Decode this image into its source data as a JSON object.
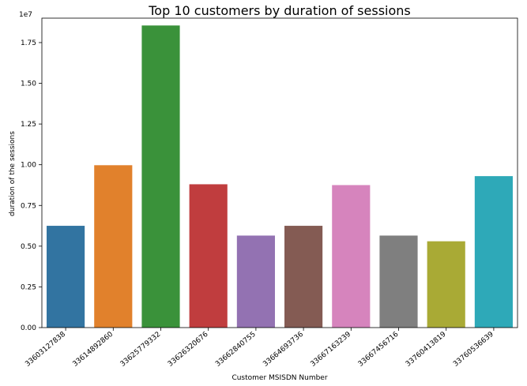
{
  "chart_data": {
    "type": "bar",
    "title": "Top 10 customers by duration of sessions",
    "xlabel": "Customer MSISDN Number",
    "ylabel": "duration of the sessions",
    "y_offset_label": "1e7",
    "categories": [
      "33603127838",
      "33614892860",
      "33625779332",
      "33626320676",
      "33662840755",
      "33664693736",
      "33667163239",
      "33667456716",
      "33760413819",
      "33760536639"
    ],
    "values": [
      6250000,
      9970000,
      18550000,
      8800000,
      5650000,
      6250000,
      8750000,
      5650000,
      5300000,
      9300000
    ],
    "colors": [
      "#3274a1",
      "#e1812c",
      "#3a923a",
      "#c03d3e",
      "#9372b2",
      "#845b53",
      "#d684bd",
      "#7f7f7f",
      "#a9aa35",
      "#2ea9b8"
    ],
    "ylim": [
      0,
      19000000
    ],
    "yticks": [
      0,
      2500000,
      5000000,
      7500000,
      10000000,
      12500000,
      15000000,
      17500000
    ],
    "ytick_labels": [
      "0.00",
      "0.25",
      "0.50",
      "0.75",
      "1.00",
      "1.25",
      "1.50",
      "1.75"
    ],
    "grid": false,
    "legend": "none"
  }
}
